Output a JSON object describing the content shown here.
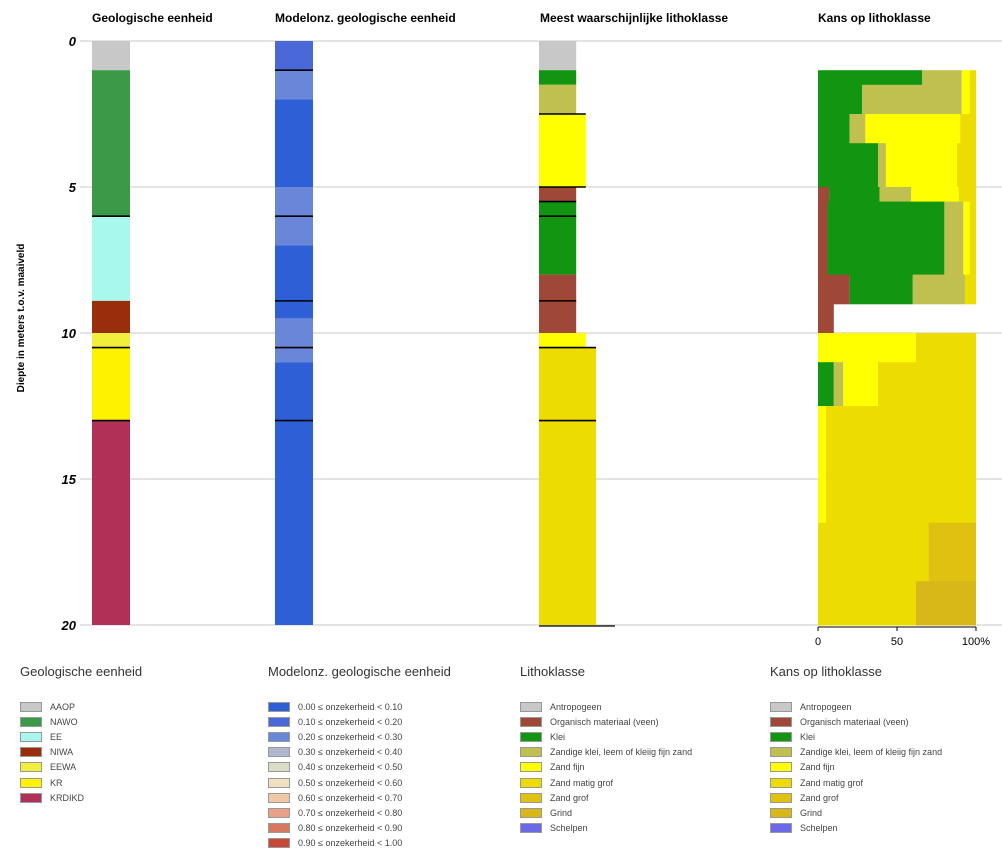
{
  "chart_data": {
    "type": "bar",
    "ylabel": "Diepte in meters t.o.v. maaiveld",
    "ylim": [
      0,
      20
    ],
    "yticks": [
      0,
      5,
      10,
      15,
      20
    ],
    "grid": true,
    "columns": {
      "geo": {
        "title": "Geologische eenheid",
        "segments": [
          {
            "from": 0,
            "to": 1.0,
            "unit": "AAOP",
            "color": "#c8c8c8"
          },
          {
            "from": 1.0,
            "to": 6.0,
            "unit": "NAWO",
            "color": "#3a9a48"
          },
          {
            "from": 6.0,
            "to": 8.9,
            "unit": "EE",
            "color": "#a8f8ee"
          },
          {
            "from": 8.9,
            "to": 10.0,
            "unit": "NIWA",
            "color": "#9a2e0c"
          },
          {
            "from": 10.0,
            "to": 10.5,
            "unit": "EEWA",
            "color": "#f2ee3c"
          },
          {
            "from": 10.5,
            "to": 13.0,
            "unit": "KR",
            "color": "#fff200"
          },
          {
            "from": 13.0,
            "to": 20.0,
            "unit": "KRDIKD",
            "color": "#b03058"
          }
        ],
        "boundaries": [
          6.0,
          10.5,
          13.0
        ]
      },
      "unc": {
        "title": "Modelonz. geologische eenheid",
        "segments": [
          {
            "from": 0,
            "to": 1.0,
            "color": "#4a68d8"
          },
          {
            "from": 1.0,
            "to": 2.0,
            "color": "#6a86d8"
          },
          {
            "from": 2.0,
            "to": 5.0,
            "color": "#2f5fd6"
          },
          {
            "from": 5.0,
            "to": 7.0,
            "color": "#6a86d8"
          },
          {
            "from": 7.0,
            "to": 9.5,
            "color": "#2f5fd6"
          },
          {
            "from": 9.5,
            "to": 11.0,
            "color": "#6a86d8"
          },
          {
            "from": 11.0,
            "to": 20.0,
            "color": "#2f5fd6"
          }
        ],
        "boundaries": [
          1.0,
          6.0,
          8.9,
          10.5,
          13.0
        ]
      },
      "litho": {
        "title": "Meest waarschijnlijke lithoklasse",
        "segments": [
          {
            "from": 0,
            "to": 1.0,
            "class": "Antropogeen",
            "color": "#c8c8c8",
            "width": 0.62
          },
          {
            "from": 1.0,
            "to": 1.5,
            "class": "Klei",
            "color": "#129612",
            "width": 0.62
          },
          {
            "from": 1.5,
            "to": 2.5,
            "class": "Zandige klei",
            "color": "#c0c050",
            "width": 0.62
          },
          {
            "from": 2.5,
            "to": 5.0,
            "class": "Zand fijn",
            "color": "#ffff00",
            "width": 0.78
          },
          {
            "from": 5.0,
            "to": 5.5,
            "class": "Organisch materiaal",
            "color": "#a04838",
            "width": 0.62
          },
          {
            "from": 5.5,
            "to": 8.0,
            "class": "Klei",
            "color": "#129612",
            "width": 0.62
          },
          {
            "from": 8.0,
            "to": 10.0,
            "class": "Organisch materiaal",
            "color": "#a04838",
            "width": 0.62
          },
          {
            "from": 10.0,
            "to": 10.5,
            "class": "Zand fijn",
            "color": "#ffff00",
            "width": 0.78
          },
          {
            "from": 10.5,
            "to": 20.0,
            "class": "Zand matig grof",
            "color": "#ecdc00",
            "width": 0.95
          }
        ],
        "boundaries": [
          {
            "d": 2.5,
            "w": 0.78
          },
          {
            "d": 5.0,
            "w": 0.78
          },
          {
            "d": 5.5,
            "w": 0.62
          },
          {
            "d": 6.0,
            "w": 0.62
          },
          {
            "d": 8.9,
            "w": 0.62
          },
          {
            "d": 10.5,
            "w": 0.95
          },
          {
            "d": 13.0,
            "w": 0.95
          }
        ]
      },
      "prob": {
        "title": "Kans op lithoklasse",
        "xticks": [
          "0",
          "50",
          "100%"
        ],
        "layers": [
          {
            "from": 1.0,
            "to": 1.5,
            "parts": [
              {
                "c": "#129612",
                "v": 0.66
              },
              {
                "c": "#c0c050",
                "v": 0.25
              },
              {
                "c": "#ffff00",
                "v": 0.05
              },
              {
                "c": "#ecdc00",
                "v": 0.04
              }
            ]
          },
          {
            "from": 1.5,
            "to": 2.5,
            "parts": [
              {
                "c": "#129612",
                "v": 0.28
              },
              {
                "c": "#c0c050",
                "v": 0.63
              },
              {
                "c": "#ffff00",
                "v": 0.05
              },
              {
                "c": "#ecdc00",
                "v": 0.04
              }
            ]
          },
          {
            "from": 2.5,
            "to": 3.5,
            "parts": [
              {
                "c": "#129612",
                "v": 0.2
              },
              {
                "c": "#c0c050",
                "v": 0.1
              },
              {
                "c": "#ffff00",
                "v": 0.6
              },
              {
                "c": "#ecdc00",
                "v": 0.1
              }
            ]
          },
          {
            "from": 3.5,
            "to": 5.0,
            "parts": [
              {
                "c": "#129612",
                "v": 0.38
              },
              {
                "c": "#c0c050",
                "v": 0.05
              },
              {
                "c": "#ffff00",
                "v": 0.45
              },
              {
                "c": "#ecdc00",
                "v": 0.12
              }
            ]
          },
          {
            "from": 5.0,
            "to": 5.5,
            "parts": [
              {
                "c": "#a04838",
                "v": 0.07
              },
              {
                "c": "#129612",
                "v": 0.32
              },
              {
                "c": "#c0c050",
                "v": 0.2
              },
              {
                "c": "#ffff00",
                "v": 0.3
              },
              {
                "c": "#ecdc00",
                "v": 0.11
              }
            ]
          },
          {
            "from": 5.5,
            "to": 8.0,
            "parts": [
              {
                "c": "#a04838",
                "v": 0.06
              },
              {
                "c": "#129612",
                "v": 0.74
              },
              {
                "c": "#c0c050",
                "v": 0.12
              },
              {
                "c": "#ffff00",
                "v": 0.04
              },
              {
                "c": "#ecdc00",
                "v": 0.04
              }
            ]
          },
          {
            "from": 8.0,
            "to": 9.0,
            "parts": [
              {
                "c": "#a04838",
                "v": 0.2
              },
              {
                "c": "#129612",
                "v": 0.4
              },
              {
                "c": "#c0c050",
                "v": 0.33
              },
              {
                "c": "#ecdc00",
                "v": 0.07
              }
            ]
          },
          {
            "from": 9.0,
            "to": 10.0,
            "parts": [
              {
                "c": "#a04838",
                "v": 0.1
              }
            ]
          },
          {
            "from": 10.0,
            "to": 11.0,
            "parts": [
              {
                "c": "#ffff00",
                "v": 0.62
              },
              {
                "c": "#ecdc00",
                "v": 0.38
              }
            ]
          },
          {
            "from": 11.0,
            "to": 12.5,
            "parts": [
              {
                "c": "#129612",
                "v": 0.1
              },
              {
                "c": "#c0c050",
                "v": 0.06
              },
              {
                "c": "#ffff00",
                "v": 0.22
              },
              {
                "c": "#ecdc00",
                "v": 0.62
              }
            ]
          },
          {
            "from": 12.5,
            "to": 16.5,
            "parts": [
              {
                "c": "#ffff00",
                "v": 0.05
              },
              {
                "c": "#ecdc00",
                "v": 0.95
              }
            ]
          },
          {
            "from": 16.5,
            "to": 18.5,
            "parts": [
              {
                "c": "#ecdc00",
                "v": 0.7
              },
              {
                "c": "#e0c010",
                "v": 0.3
              }
            ]
          },
          {
            "from": 18.5,
            "to": 20.0,
            "parts": [
              {
                "c": "#ecdc00",
                "v": 0.62
              },
              {
                "c": "#d8b818",
                "v": 0.38
              }
            ]
          }
        ]
      }
    }
  },
  "legends": [
    {
      "title": "Geologische eenheid",
      "items": [
        {
          "label": "AAOP",
          "color": "#c8c8c8"
        },
        {
          "label": "NAWO",
          "color": "#3a9a48"
        },
        {
          "label": "EE",
          "color": "#a8f8ee"
        },
        {
          "label": "NIWA",
          "color": "#9a2e0c"
        },
        {
          "label": "EEWA",
          "color": "#f2ee3c"
        },
        {
          "label": "KR",
          "color": "#fff200"
        },
        {
          "label": "KRDIKD",
          "color": "#b03058"
        }
      ]
    },
    {
      "title": "Modelonz. geologische eenheid",
      "items": [
        {
          "label": "0.00 ≤ onzekerheid < 0.10",
          "color": "#2f5fd6"
        },
        {
          "label": "0.10 ≤ onzekerheid < 0.20",
          "color": "#4a68d8"
        },
        {
          "label": "0.20 ≤ onzekerheid < 0.30",
          "color": "#6a86d8"
        },
        {
          "label": "0.30 ≤ onzekerheid < 0.40",
          "color": "#b0b8d0"
        },
        {
          "label": "0.40 ≤ onzekerheid < 0.50",
          "color": "#dcdcc8"
        },
        {
          "label": "0.50 ≤ onzekerheid < 0.60",
          "color": "#f0e0c0"
        },
        {
          "label": "0.60 ≤ onzekerheid < 0.70",
          "color": "#f0c8a8"
        },
        {
          "label": "0.70 ≤ onzekerheid < 0.80",
          "color": "#e8a088"
        },
        {
          "label": "0.80 ≤ onzekerheid < 0.90",
          "color": "#d87860"
        },
        {
          "label": "0.90 ≤ onzekerheid < 1.00",
          "color": "#c84838"
        }
      ]
    },
    {
      "title": "Lithoklasse",
      "items": [
        {
          "label": "Antropogeen",
          "color": "#c8c8c8"
        },
        {
          "label": "Organisch materiaal (veen)",
          "color": "#a04838"
        },
        {
          "label": "Klei",
          "color": "#129612"
        },
        {
          "label": "Zandige klei, leem of kleiig fijn zand",
          "color": "#c0c050"
        },
        {
          "label": "Zand fijn",
          "color": "#ffff00"
        },
        {
          "label": "Zand matig grof",
          "color": "#ecdc00"
        },
        {
          "label": "Zand grof",
          "color": "#e0c010"
        },
        {
          "label": "Grind",
          "color": "#d8b818"
        },
        {
          "label": "Schelpen",
          "color": "#6a6ae8"
        }
      ]
    },
    {
      "title": "Kans op lithoklasse",
      "items": [
        {
          "label": "Antropogeen",
          "color": "#c8c8c8"
        },
        {
          "label": "Organisch materiaal (veen)",
          "color": "#a04838"
        },
        {
          "label": "Klei",
          "color": "#129612"
        },
        {
          "label": "Zandige klei, leem of kleiig fijn zand",
          "color": "#c0c050"
        },
        {
          "label": "Zand fijn",
          "color": "#ffff00"
        },
        {
          "label": "Zand matig grof",
          "color": "#ecdc00"
        },
        {
          "label": "Zand grof",
          "color": "#e0c010"
        },
        {
          "label": "Grind",
          "color": "#d8b818"
        },
        {
          "label": "Schelpen",
          "color": "#6a6ae8"
        }
      ]
    }
  ]
}
